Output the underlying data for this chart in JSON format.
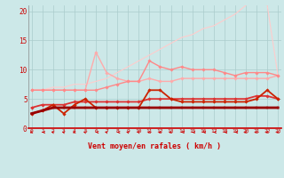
{
  "title": "",
  "xlabel": "Vent moyen/en rafales ( km/h )",
  "x": [
    0,
    1,
    2,
    3,
    4,
    5,
    6,
    7,
    8,
    9,
    10,
    11,
    12,
    13,
    14,
    15,
    16,
    17,
    18,
    19,
    20,
    21,
    22,
    23
  ],
  "lines": [
    {
      "y": [
        2.5,
        3.0,
        3.5,
        3.5,
        3.5,
        3.5,
        3.5,
        3.5,
        3.5,
        3.5,
        3.5,
        3.5,
        3.5,
        3.5,
        3.5,
        3.5,
        3.5,
        3.5,
        3.5,
        3.5,
        3.5,
        3.5,
        3.5,
        3.5
      ],
      "color": "#990000",
      "lw": 2.0,
      "marker": "s",
      "ms": 2.0
    },
    {
      "y": [
        2.5,
        3.0,
        4.0,
        2.5,
        4.0,
        5.0,
        3.5,
        3.5,
        3.5,
        3.5,
        3.5,
        6.5,
        6.5,
        5.0,
        4.5,
        4.5,
        4.5,
        4.5,
        4.5,
        4.5,
        4.5,
        5.0,
        6.5,
        5.0
      ],
      "color": "#cc2200",
      "lw": 1.3,
      "marker": "D",
      "ms": 1.8
    },
    {
      "y": [
        3.5,
        4.0,
        4.0,
        4.0,
        4.5,
        4.5,
        4.5,
        4.5,
        4.5,
        4.5,
        4.5,
        5.0,
        5.0,
        5.0,
        5.0,
        5.0,
        5.0,
        5.0,
        5.0,
        5.0,
        5.0,
        5.5,
        5.5,
        5.0
      ],
      "color": "#dd3333",
      "lw": 1.3,
      "marker": "D",
      "ms": 1.8
    },
    {
      "y": [
        6.5,
        6.5,
        6.5,
        6.5,
        6.5,
        6.5,
        6.5,
        7.0,
        7.5,
        8.0,
        8.0,
        11.5,
        10.5,
        10.0,
        10.5,
        10.0,
        10.0,
        10.0,
        9.5,
        9.0,
        9.5,
        9.5,
        9.5,
        9.0
      ],
      "color": "#ff8888",
      "lw": 1.0,
      "marker": "D",
      "ms": 1.8
    },
    {
      "y": [
        6.5,
        6.5,
        6.5,
        6.5,
        6.5,
        6.5,
        13.0,
        9.5,
        8.5,
        8.0,
        8.0,
        8.5,
        8.0,
        8.0,
        8.5,
        8.5,
        8.5,
        8.5,
        8.5,
        8.5,
        8.5,
        8.5,
        8.5,
        9.0
      ],
      "color": "#ffaaaa",
      "lw": 1.0,
      "marker": "D",
      "ms": 1.8
    },
    {
      "y": [
        6.5,
        6.5,
        7.0,
        7.0,
        7.5,
        7.5,
        8.0,
        8.5,
        9.5,
        10.5,
        11.5,
        12.5,
        13.5,
        14.5,
        15.5,
        16.0,
        17.0,
        17.5,
        18.5,
        19.5,
        21.0,
        22.0,
        21.0,
        9.0
      ],
      "color": "#ffcccc",
      "lw": 0.8,
      "marker": null,
      "ms": 0
    }
  ],
  "wind_arrow_angles": [
    225,
    270,
    315,
    315,
    225,
    315,
    270,
    315,
    270,
    315,
    315,
    225,
    225,
    225,
    270,
    270,
    270,
    270,
    270,
    270,
    225,
    225,
    225,
    225
  ],
  "ylim": [
    0,
    21
  ],
  "xlim": [
    -0.3,
    23.3
  ],
  "yticks": [
    0,
    5,
    10,
    15,
    20
  ],
  "bg_color": "#cce8e8",
  "grid_color": "#aacccc",
  "tick_color": "#cc0000",
  "spine_bottom_color": "#cc0000",
  "arrow_color": "#cc0000"
}
